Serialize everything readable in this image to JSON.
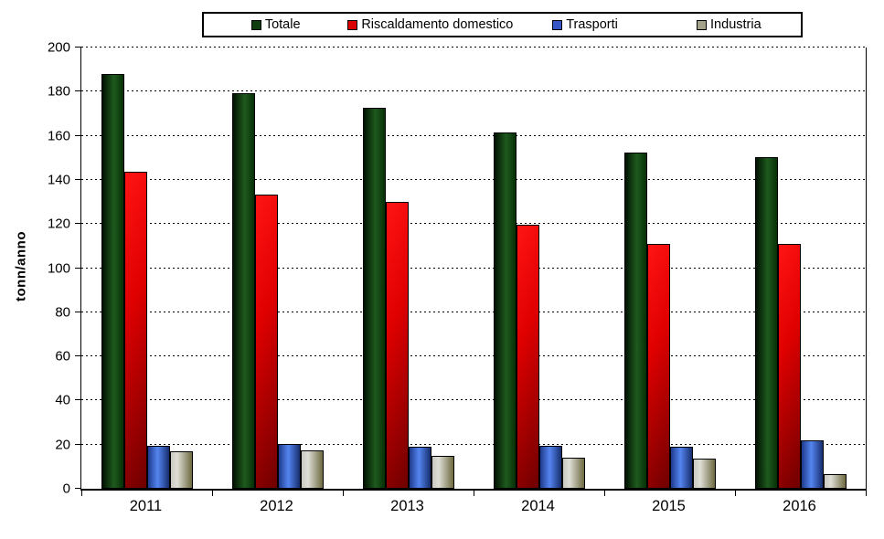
{
  "chart_data": {
    "type": "bar",
    "title": "",
    "xlabel": "",
    "ylabel": "tonn/anno",
    "ylim": [
      0,
      200
    ],
    "ytick_step": 20,
    "grid": "horizontal-dashed",
    "legend_position": "top",
    "categories": [
      "2011",
      "2012",
      "2013",
      "2014",
      "2015",
      "2016"
    ],
    "series": [
      {
        "name": "Totale",
        "color": "#0E3D0E",
        "values": [
          188,
          179.5,
          172.5,
          161.5,
          152.5,
          150.5
        ]
      },
      {
        "name": "Riscaldamento domestico",
        "color": "#DD0000",
        "values": [
          143.5,
          133.5,
          130,
          119.5,
          111,
          111
        ]
      },
      {
        "name": "Trasporti",
        "color": "#3557C8",
        "values": [
          19.5,
          20.5,
          19,
          19.5,
          19,
          22
        ]
      },
      {
        "name": "Industria",
        "color": "#A5A28A",
        "values": [
          17,
          17.5,
          15,
          14,
          13.5,
          6.5
        ]
      }
    ]
  }
}
